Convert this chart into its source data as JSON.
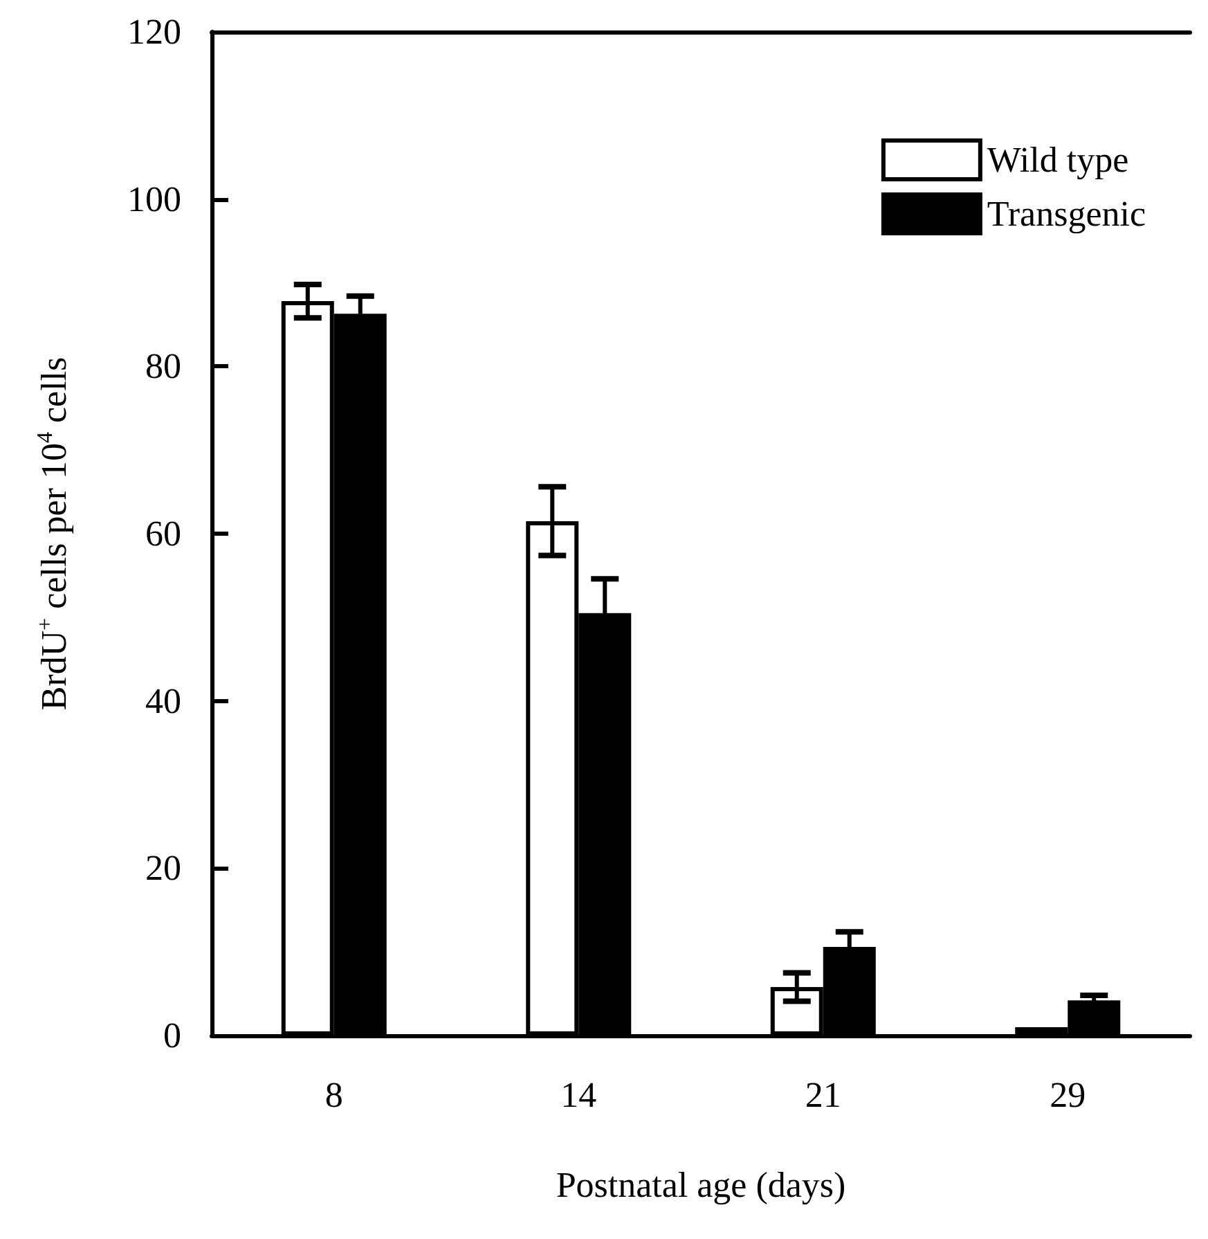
{
  "chart_data": {
    "type": "bar",
    "xlabel": "Postnatal age (days)",
    "ylabel": "BrdU$^{+}$ cells per 10$^{4}$ cells",
    "categories": [
      "8",
      "14",
      "21",
      "29"
    ],
    "series": [
      {
        "name": "Wild type",
        "color": "#ffffff",
        "values": [
          87.8,
          61.5,
          5.8,
          1
        ],
        "errors": [
          2,
          4.1,
          1.7,
          null
        ]
      },
      {
        "name": "Transgenic",
        "color": "#000000",
        "values": [
          86.3,
          50.5,
          10.6,
          4.2
        ],
        "errors": [
          2.1,
          4.1,
          1.8,
          0.6
        ]
      }
    ],
    "ylim": [
      0,
      120
    ],
    "yticks": [
      0,
      20,
      40,
      60,
      80,
      100,
      120
    ],
    "grid": false,
    "legend": "top right"
  }
}
